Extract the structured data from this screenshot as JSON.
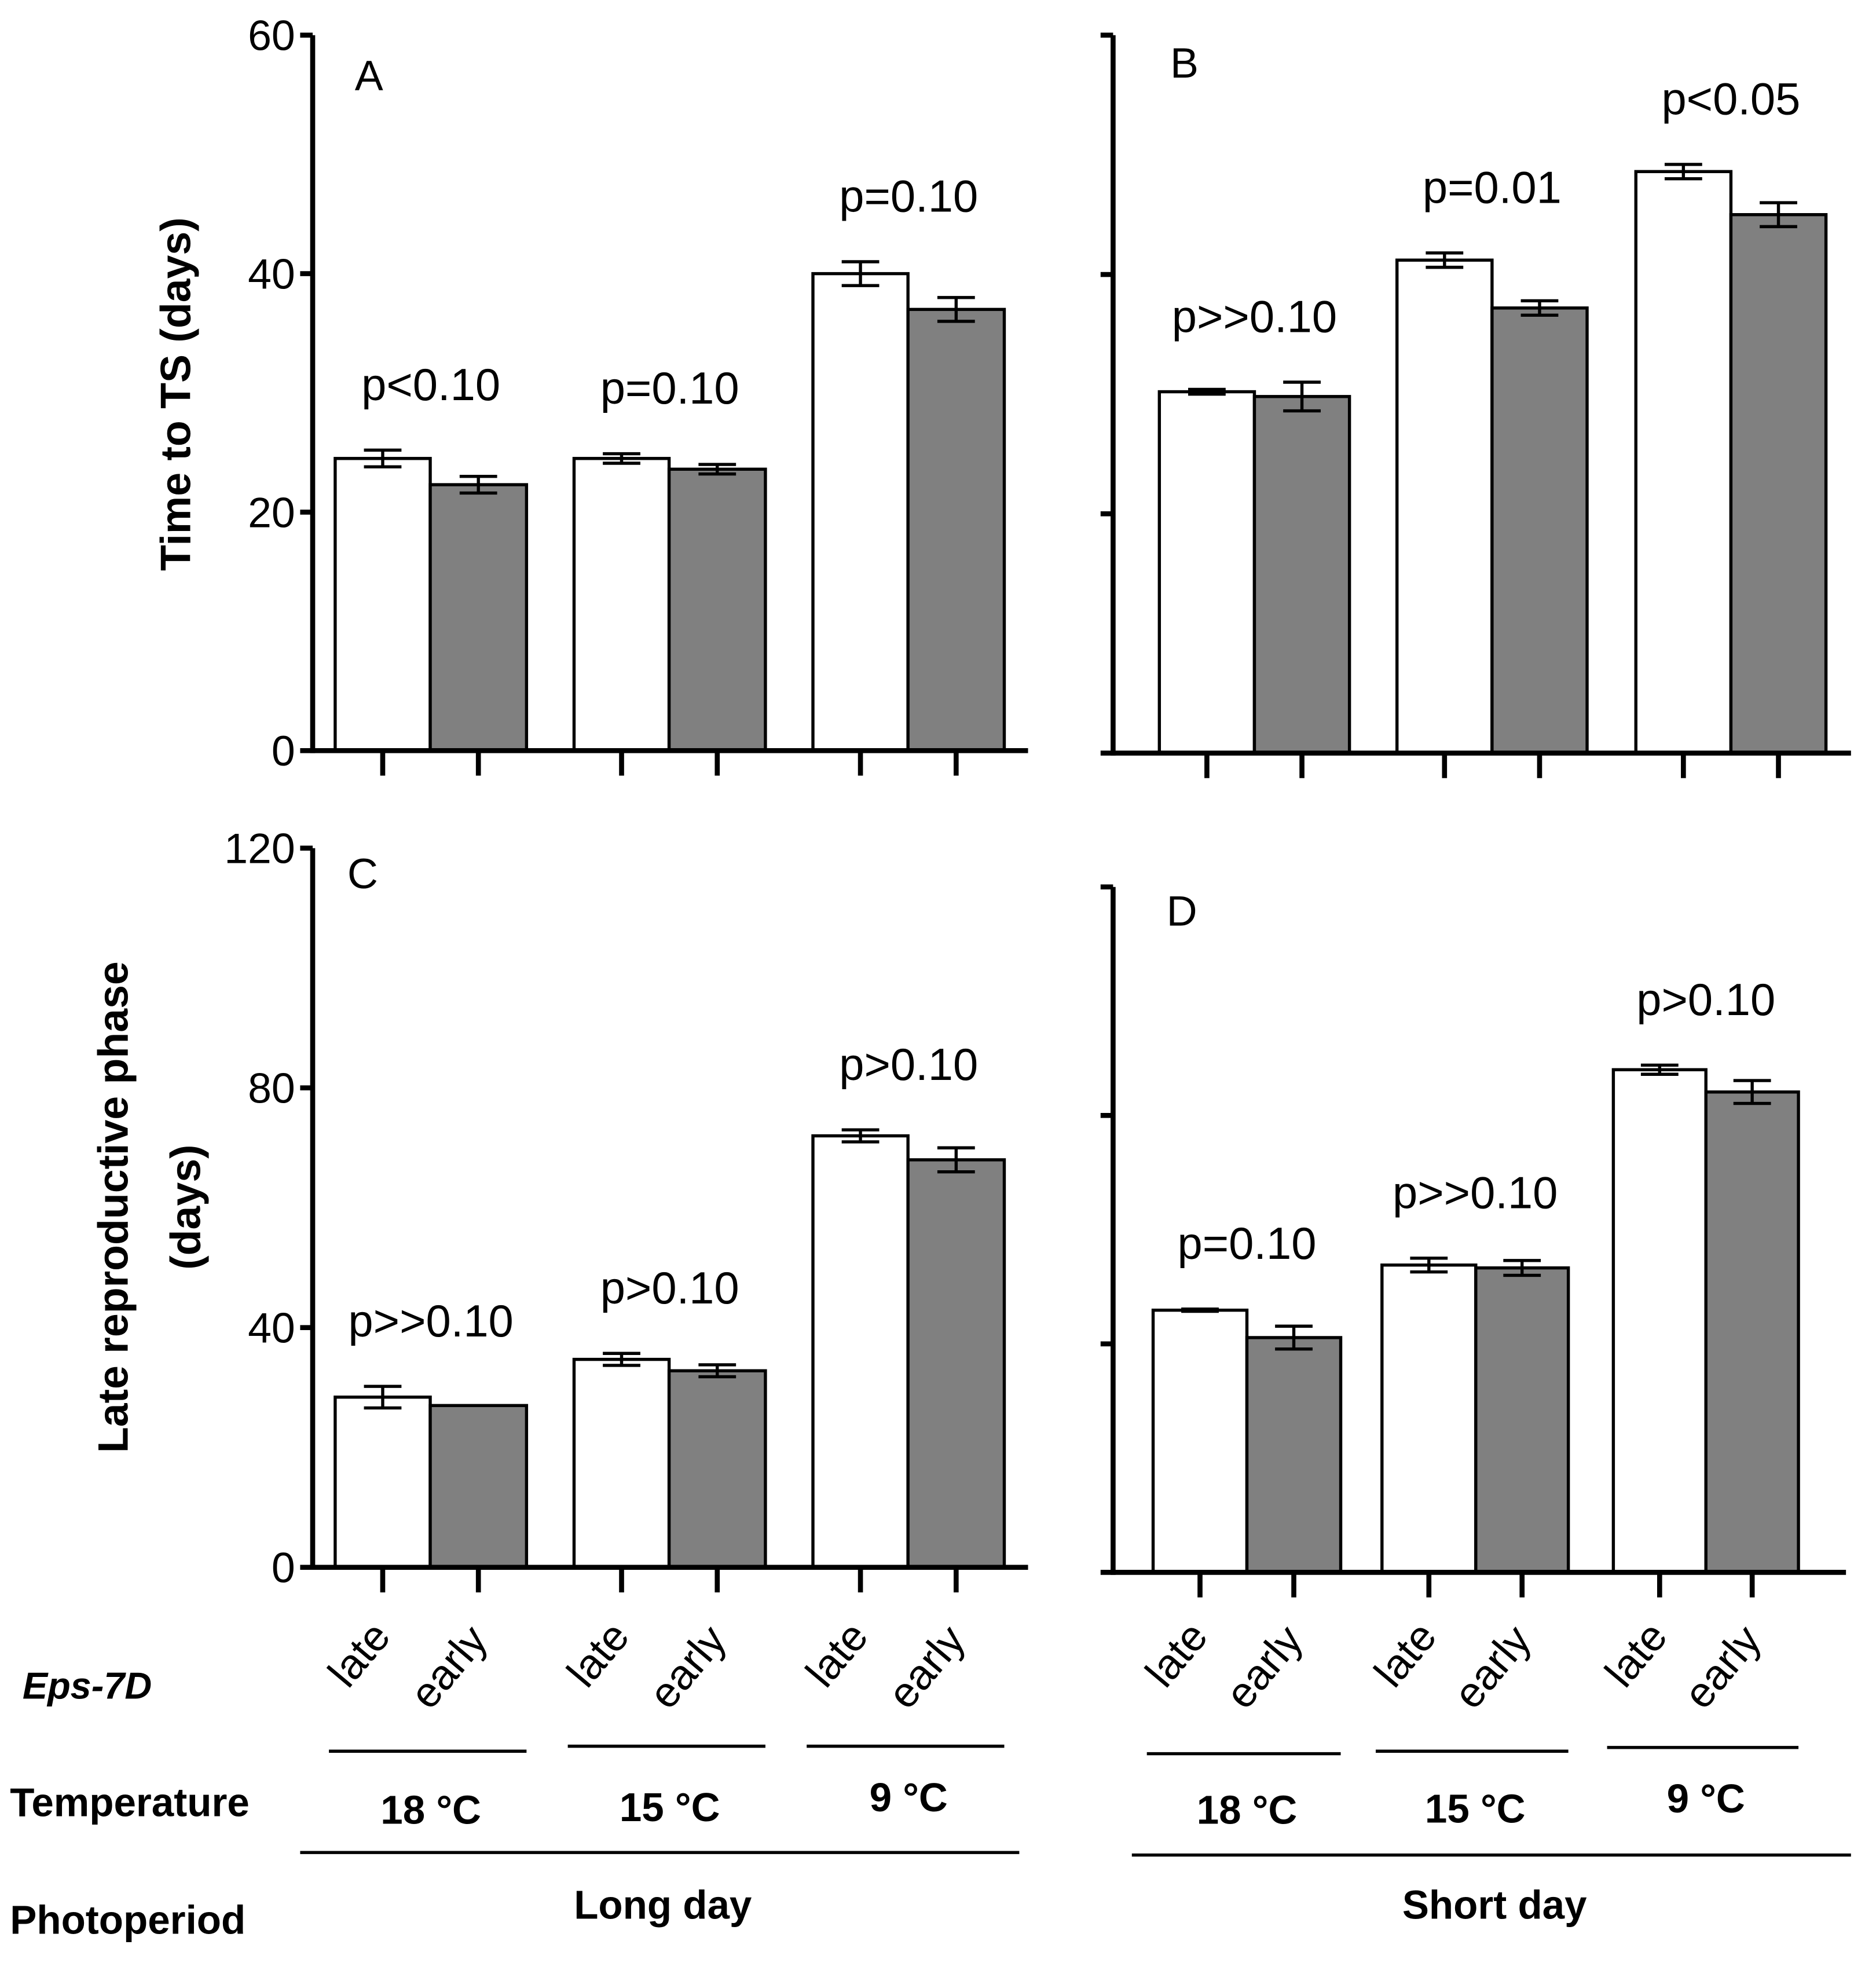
{
  "chart_data": [
    {
      "type": "bar",
      "panel": "A",
      "ylabel": "Time to TS (days)",
      "ylim": [
        0,
        60
      ],
      "yticks": [
        "0",
        "20",
        "40",
        "60"
      ],
      "categories": [
        "18 °C late",
        "18 °C early",
        "15 °C late",
        "15 °C early",
        "9 °C late",
        "9 °C early"
      ],
      "values": [
        24.5,
        22.3,
        24.5,
        23.6,
        40.0,
        37.0
      ],
      "errors": [
        0.7,
        0.7,
        0.4,
        0.4,
        1.0,
        1.0
      ],
      "annotations": [
        "p<0.10",
        "p=0.10",
        "p=0.10"
      ]
    },
    {
      "type": "bar",
      "panel": "B",
      "ylim": [
        0,
        60
      ],
      "yticks": [
        "",
        "",
        "",
        ""
      ],
      "categories": [
        "18 °C late",
        "18 °C early",
        "15 °C late",
        "15 °C early",
        "9 °C late",
        "9 °C early"
      ],
      "values": [
        30.2,
        29.8,
        41.2,
        37.2,
        48.6,
        45.0
      ],
      "errors": [
        0.2,
        1.2,
        0.6,
        0.6,
        0.6,
        1.0
      ],
      "annotations": [
        "p>>0.10",
        "p=0.01",
        "p<0.05"
      ]
    },
    {
      "type": "bar",
      "panel": "C",
      "ylabel": [
        "Late reproductive phase",
        "(days)"
      ],
      "ylim": [
        0,
        120
      ],
      "yticks": [
        "0",
        "40",
        "80",
        "120"
      ],
      "categories": [
        "18 °C late",
        "18 °C early",
        "15 °C late",
        "15 °C early",
        "9 °C late",
        "9 °C early"
      ],
      "values": [
        28.4,
        27.0,
        34.7,
        32.8,
        72.0,
        68.0
      ],
      "errors": [
        1.8,
        0,
        1.0,
        1.0,
        1.0,
        2.0
      ],
      "annotations": [
        "p>>0.10",
        "p>0.10",
        "p>0.10"
      ]
    },
    {
      "type": "bar",
      "panel": "D",
      "ylim": [
        0,
        120
      ],
      "yticks": [
        "",
        "",
        "",
        ""
      ],
      "categories": [
        "18 °C late",
        "18 °C early",
        "15 °C late",
        "15 °C early",
        "9 °C late",
        "9 °C early"
      ],
      "values": [
        45.9,
        41.1,
        53.8,
        53.3,
        88.0,
        84.1
      ],
      "errors": [
        0.2,
        2.0,
        1.2,
        1.3,
        0.8,
        2.0
      ],
      "annotations": [
        "p=0.10",
        "p>>0.10",
        "p>0.10"
      ]
    }
  ],
  "colors": {
    "late": "#ffffff",
    "early": "#808080",
    "stroke": "#000000"
  },
  "legend": {
    "genotype_label": "Eps-7D",
    "temperature_label": "Temperature",
    "photoperiod_label": "Photoperiod",
    "genotypes": [
      "late",
      "early"
    ],
    "temperatures": [
      "18 °C",
      "15 °C",
      "9 °C"
    ],
    "photoperiods": [
      "Long day",
      "Short day"
    ]
  }
}
